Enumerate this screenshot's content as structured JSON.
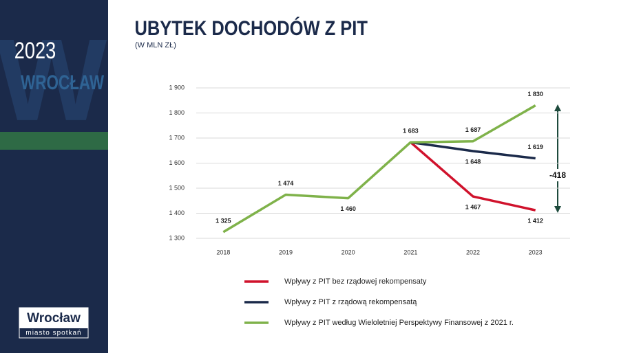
{
  "sidebar": {
    "year": "2023",
    "city": "WROCŁAW",
    "letter": "W",
    "logo": "Wrocław",
    "tagline": "miasto spotkań"
  },
  "chart_data": {
    "type": "line",
    "title": "UBYTEK DOCHODÓW Z PIT",
    "subtitle": "(W MLN ZŁ)",
    "categories": [
      "2018",
      "2019",
      "2020",
      "2021",
      "2022",
      "2023"
    ],
    "series": [
      {
        "name": "Wpływy z PIT bez rządowej rekompensaty",
        "color": "#d0122c",
        "values": [
          null,
          null,
          null,
          1683,
          1467,
          1412
        ],
        "value_labels": [
          null,
          null,
          null,
          null,
          "1 467",
          "1 412"
        ]
      },
      {
        "name": "Wpływy z PIT z rządową rekompensatą",
        "color": "#1b2a4a",
        "values": [
          null,
          null,
          null,
          1683,
          1648,
          1619
        ],
        "value_labels": [
          null,
          null,
          null,
          null,
          "1 648",
          "1 619"
        ]
      },
      {
        "name": "Wpływy z PIT według Wieloletniej Perspektywy Finansowej z 2021 r.",
        "color": "#7fb24a",
        "values": [
          1325,
          1474,
          1460,
          1683,
          1687,
          1830
        ],
        "value_labels": [
          "1 325",
          "1 474",
          "1 460",
          "1 683",
          "1 687",
          "1 830"
        ]
      }
    ],
    "ylim": [
      1300,
      1900
    ],
    "yticks": [
      {
        "value": 1300,
        "label": "1 300"
      },
      {
        "value": 1400,
        "label": "1 400"
      },
      {
        "value": 1500,
        "label": "1 500"
      },
      {
        "value": 1600,
        "label": "1 600"
      },
      {
        "value": 1700,
        "label": "1 700"
      },
      {
        "value": 1800,
        "label": "1 800"
      },
      {
        "value": 1900,
        "label": "1 900"
      }
    ],
    "grid": true,
    "annotation": "-418"
  }
}
